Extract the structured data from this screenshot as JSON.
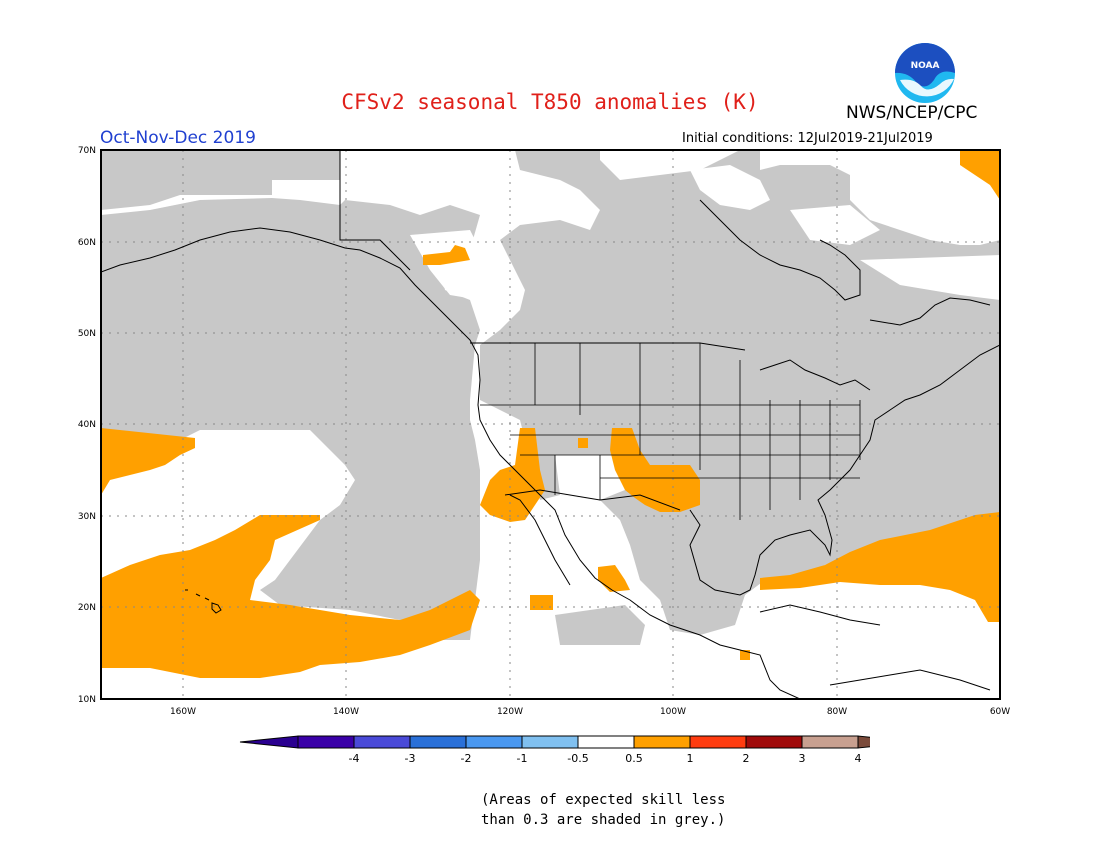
{
  "header": {
    "title": "CFSv2 seasonal T850 anomalies (K)",
    "agency": "NWS/NCEP/CPC",
    "season": "Oct-Nov-Dec 2019",
    "initial_conditions": "Initial conditions: 12Jul2019-21Jul2019",
    "logo_text": "NOAA"
  },
  "map": {
    "lat_labels": [
      "70N",
      "60N",
      "50N",
      "40N",
      "30N",
      "20N",
      "10N"
    ],
    "lon_labels": [
      "160W",
      "140W",
      "120W",
      "100W",
      "80W",
      "60W"
    ],
    "extent": {
      "lon_min": -170,
      "lon_max": -60,
      "lat_min": 10,
      "lat_max": 70
    }
  },
  "legend": {
    "labels": [
      "-4",
      "-3",
      "-2",
      "-1",
      "-0.5",
      "0.5",
      "1",
      "2",
      "3",
      "4"
    ],
    "colors": [
      "#3a00a8",
      "#4a4ad8",
      "#2a70d8",
      "#4a98f0",
      "#80c0f0",
      "#ffffff",
      "#ffa000",
      "#ff3c10",
      "#a00a0a",
      "#c8a090",
      "#7a4a3a",
      "#2a0090"
    ]
  },
  "colors": {
    "grey_skill": "#c8c8c8",
    "warm_anomaly": "#ffa000",
    "title_red": "#e0201a",
    "season_blue": "#2040d0",
    "logo_blue": "#1c4fc0",
    "logo_cyan": "#20b8f0"
  },
  "footnote": {
    "line1": "(Areas of expected skill less",
    "line2": " than 0.3 are shaded in grey.)"
  }
}
